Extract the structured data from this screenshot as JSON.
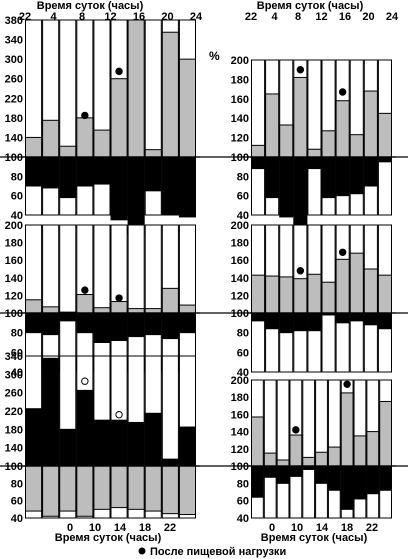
{
  "chart_data": {
    "type": "bar",
    "top_title": "Время суток (часы)",
    "bottom_title": "Время суток (часы)",
    "percent_label": "%",
    "legend": "После пищевой нагрузки",
    "colors": {
      "gray": "#bdbdbd",
      "black": "#000000",
      "white": "#ffffff",
      "line": "#000000"
    },
    "top_ticks": [
      "22",
      "4",
      "8",
      "12",
      "16",
      "20",
      "24"
    ],
    "bottom_ticks": [
      "0",
      "10",
      "14",
      "18",
      "22"
    ],
    "panels": [
      {
        "y_ticks_upper": [
          "380",
          "340",
          "300",
          "260",
          "220",
          "180",
          "140",
          "100"
        ],
        "y_ticks_lower": [
          "80",
          "60",
          "40"
        ],
        "upper": [
          140,
          175,
          122,
          180,
          155,
          260,
          380,
          115,
          355,
          300
        ],
        "lower": [
          70,
          68,
          58,
          70,
          72,
          35,
          20,
          65,
          40,
          38
        ],
        "marker": [
          3,
          5
        ],
        "marker_value": [
          185,
          275
        ]
      },
      {
        "y_ticks_upper": [
          "200",
          "180",
          "160",
          "140",
          "120",
          "100"
        ],
        "y_ticks_lower": [
          "80",
          "60",
          "40"
        ],
        "upper": [
          115,
          107,
          101,
          121,
          106,
          113,
          105,
          105,
          128,
          109
        ],
        "lower": [
          80,
          78,
          92,
          80,
          70,
          72,
          76,
          78,
          74,
          80
        ],
        "marker": [
          3,
          5
        ],
        "marker_value": [
          126,
          117
        ]
      },
      {
        "y_ticks_upper": [
          "340",
          "300",
          "260",
          "220",
          "180",
          "140",
          "100"
        ],
        "y_ticks_lower": [
          "80",
          "60",
          "40"
        ],
        "upper": [
          225,
          335,
          180,
          265,
          200,
          200,
          195,
          215,
          115,
          185
        ],
        "lower": [
          48,
          42,
          48,
          42,
          50,
          52,
          50,
          48,
          45,
          44
        ],
        "marker": [
          3,
          5
        ],
        "marker_value": [
          285,
          212
        ]
      }
    ],
    "panels_right": [
      {
        "y_ticks_upper": [
          "200",
          "180",
          "160",
          "140",
          "120",
          "100"
        ],
        "y_ticks_lower": [
          "80",
          "60",
          "40"
        ],
        "upper": [
          112,
          165,
          133,
          182,
          108,
          127,
          158,
          123,
          168,
          145
        ],
        "lower": [
          88,
          58,
          38,
          28,
          88,
          58,
          60,
          62,
          70,
          95
        ],
        "marker": [
          3,
          6
        ],
        "marker_value": [
          190,
          167
        ]
      },
      {
        "y_ticks_upper": [
          "200",
          "180",
          "160",
          "140",
          "120",
          "100"
        ],
        "y_ticks_lower": [
          "80",
          "60",
          "40"
        ],
        "upper": [
          143,
          142,
          141,
          139,
          144,
          135,
          161,
          168,
          150,
          143
        ],
        "lower": [
          92,
          84,
          80,
          82,
          82,
          98,
          90,
          92,
          88,
          84
        ],
        "marker": [
          3,
          6
        ],
        "marker_value": [
          148,
          169
        ]
      },
      {
        "y_ticks_upper": [
          "200",
          "180",
          "160",
          "140",
          "120",
          "100"
        ],
        "y_ticks_lower": [
          "80",
          "60",
          "40"
        ],
        "upper": [
          157,
          115,
          107,
          136,
          110,
          116,
          122,
          185,
          135,
          140,
          175
        ],
        "lower": [
          64,
          87,
          80,
          88,
          96,
          80,
          72,
          50,
          62,
          68,
          72
        ],
        "marker": [
          3,
          7
        ],
        "marker_value": [
          142,
          195
        ]
      }
    ]
  }
}
